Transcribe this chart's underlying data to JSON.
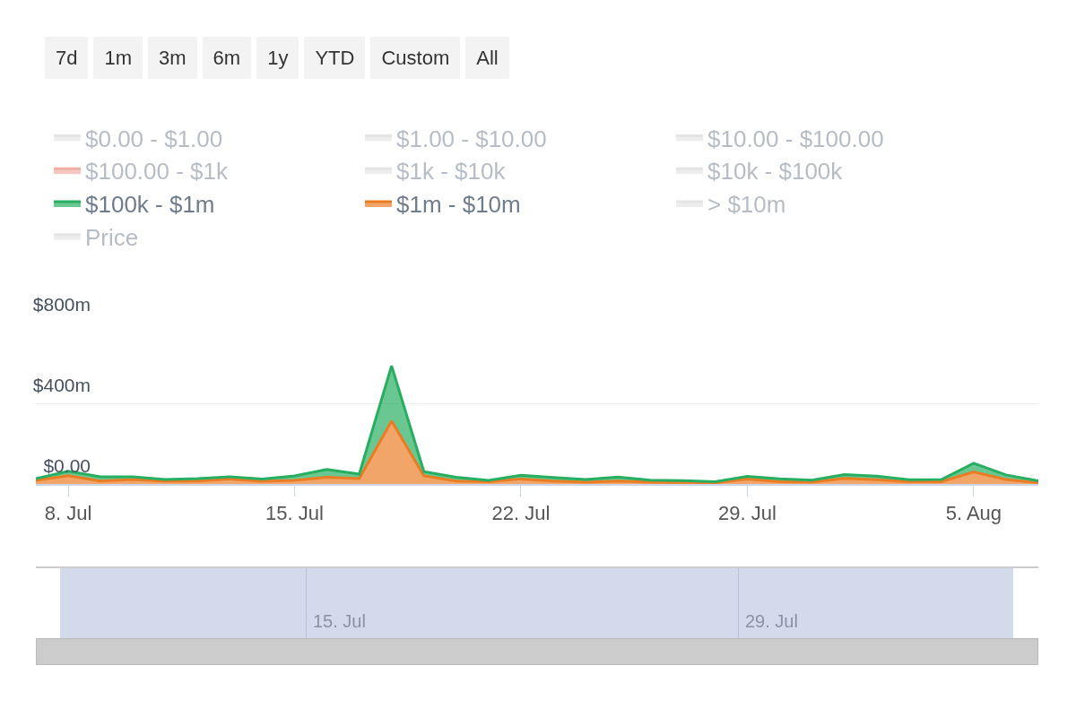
{
  "chart_data": [
    {
      "type": "area",
      "stacked": true,
      "x": [
        "--07-07",
        "--07-08",
        "--07-09",
        "--07-10",
        "--07-11",
        "--07-12",
        "--07-13",
        "--07-14",
        "--07-15",
        "--07-16",
        "--07-17",
        "--07-18",
        "--07-19",
        "--07-20",
        "--07-21",
        "--07-22",
        "--07-23",
        "--07-24",
        "--07-25",
        "--07-26",
        "--07-27",
        "--07-28",
        "--07-29",
        "--07-30",
        "--07-31",
        "--08-01",
        "--08-02",
        "--08-03",
        "--08-04",
        "--08-05",
        "--08-06",
        "--08-07"
      ],
      "series": [
        {
          "name": "$0.00 - $1.00",
          "color": "#cccccc",
          "values": [
            null,
            null,
            null,
            null,
            null,
            null,
            null,
            null,
            null,
            null,
            null,
            null,
            null,
            null,
            null,
            null,
            null,
            null,
            null,
            null,
            null,
            null,
            null,
            null,
            null,
            null,
            null,
            null,
            null,
            null,
            null,
            null
          ]
        },
        {
          "name": "$1.00 - $10.00",
          "color": "#cccccc",
          "values": [
            null,
            null,
            null,
            null,
            null,
            null,
            null,
            null,
            null,
            null,
            null,
            null,
            null,
            null,
            null,
            null,
            null,
            null,
            null,
            null,
            null,
            null,
            null,
            null,
            null,
            null,
            null,
            null,
            null,
            null,
            null,
            null
          ]
        },
        {
          "name": "$10.00 - $100.00",
          "color": "#cccccc",
          "values": [
            null,
            null,
            null,
            null,
            null,
            null,
            null,
            null,
            null,
            null,
            null,
            null,
            null,
            null,
            null,
            null,
            null,
            null,
            null,
            null,
            null,
            null,
            null,
            null,
            null,
            null,
            null,
            null,
            null,
            null,
            null,
            null
          ]
        },
        {
          "name": "$100.00 - $1k",
          "color": "#e4604e",
          "values": [
            null,
            null,
            null,
            null,
            null,
            null,
            null,
            null,
            null,
            null,
            null,
            null,
            null,
            null,
            null,
            null,
            null,
            null,
            null,
            null,
            null,
            null,
            null,
            null,
            null,
            null,
            null,
            null,
            null,
            null,
            null,
            null
          ]
        },
        {
          "name": "$1k - $10k",
          "color": "#cccccc",
          "values": [
            null,
            null,
            null,
            null,
            null,
            null,
            null,
            null,
            null,
            null,
            null,
            null,
            null,
            null,
            null,
            null,
            null,
            null,
            null,
            null,
            null,
            null,
            null,
            null,
            null,
            null,
            null,
            null,
            null,
            null,
            null,
            null
          ]
        },
        {
          "name": "$10k - $100k",
          "color": "#cccccc",
          "values": [
            null,
            null,
            null,
            null,
            null,
            null,
            null,
            null,
            null,
            null,
            null,
            null,
            null,
            null,
            null,
            null,
            null,
            null,
            null,
            null,
            null,
            null,
            null,
            null,
            null,
            null,
            null,
            null,
            null,
            null,
            null,
            null
          ]
        },
        {
          "name": "$100k - $1m",
          "color": "#27ae60",
          "values": [
            9,
            22,
            22,
            14,
            9,
            13,
            11,
            12,
            22,
            39,
            22,
            274,
            21,
            19,
            7,
            18,
            17,
            13,
            19,
            10,
            9,
            5,
            14,
            15,
            10,
            19,
            18,
            10,
            11,
            43,
            23,
            9
          ]
        },
        {
          "name": "$1m - $10m",
          "color": "#ea7d24",
          "values": [
            18,
            41,
            14,
            22,
            13,
            14,
            25,
            13,
            18,
            33,
            27,
            312,
            40,
            14,
            11,
            25,
            15,
            9,
            15,
            9,
            8,
            6,
            24,
            11,
            9,
            28,
            21,
            11,
            11,
            60,
            22,
            6
          ]
        },
        {
          "name": "> $10m",
          "color": "#cccccc",
          "values": [
            null,
            null,
            null,
            null,
            null,
            null,
            null,
            null,
            null,
            null,
            null,
            null,
            null,
            null,
            null,
            null,
            null,
            null,
            null,
            null,
            null,
            null,
            null,
            null,
            null,
            null,
            null,
            null,
            null,
            null,
            null,
            null
          ]
        },
        {
          "name": "Price",
          "color": "#cccccc",
          "values": [
            null,
            null,
            null,
            null,
            null,
            null,
            null,
            null,
            null,
            null,
            null,
            null,
            null,
            null,
            null,
            null,
            null,
            null,
            null,
            null,
            null,
            null,
            null,
            null,
            null,
            null,
            null,
            null,
            null,
            null,
            null,
            null
          ]
        }
      ],
      "xlim": [
        "--07-07",
        "--08-07"
      ],
      "xticks": [
        {
          "value": "--07-08",
          "label": "8. Jul"
        },
        {
          "value": "--07-15",
          "label": "15. Jul"
        },
        {
          "value": "--07-22",
          "label": "22. Jul"
        },
        {
          "value": "--07-29",
          "label": "29. Jul"
        },
        {
          "value": "--08-05",
          "label": "5. Aug"
        }
      ],
      "ylim": [
        0,
        800
      ],
      "yticks": [
        {
          "value": 0,
          "label": "$0.00"
        },
        {
          "value": 400,
          "label": "$400m"
        },
        {
          "value": 800,
          "label": "$800m"
        }
      ],
      "grid": "y",
      "legend": "top left",
      "annotations": [
        "7d",
        "1m",
        "3m",
        "6m",
        "1y",
        "YTD",
        "Custom",
        "All"
      ]
    },
    {
      "type": "other",
      "annotations": [
        "15. Jul",
        "29. Jul"
      ]
    }
  ]
}
